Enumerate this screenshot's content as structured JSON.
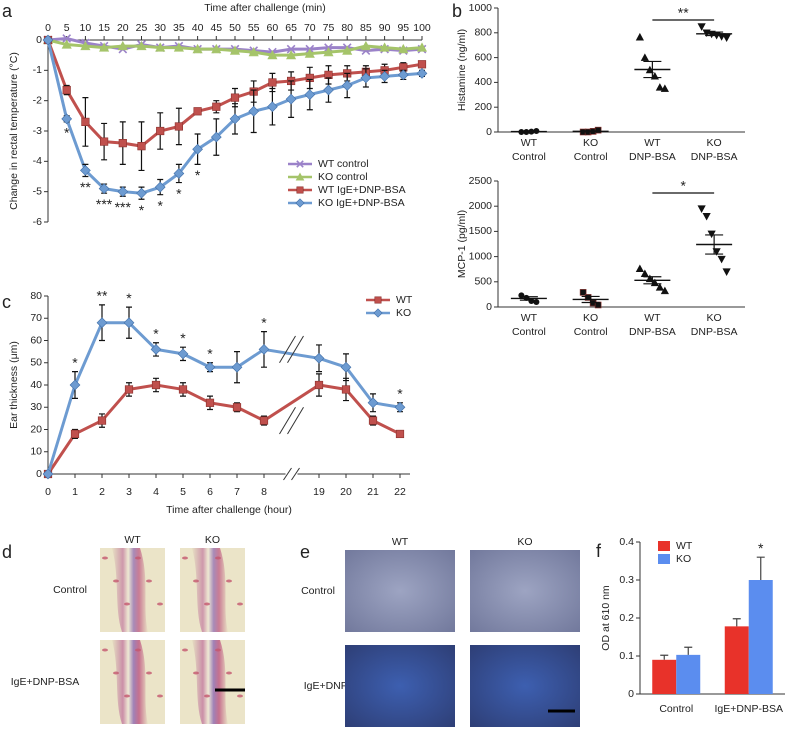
{
  "chart_data": [
    {
      "panel": "a",
      "type": "line",
      "x_label": "Time after challenge (min)",
      "y_label": "Change in rectal temperature (°C)",
      "x": [
        0,
        5,
        10,
        15,
        20,
        25,
        30,
        35,
        40,
        45,
        50,
        55,
        60,
        65,
        70,
        75,
        80,
        85,
        90,
        95,
        100
      ],
      "xlim": [
        0,
        100
      ],
      "xticks": [
        0,
        5,
        10,
        15,
        20,
        25,
        30,
        35,
        40,
        45,
        50,
        55,
        60,
        65,
        70,
        75,
        80,
        85,
        90,
        95,
        100
      ],
      "ylim": [
        -6,
        0
      ],
      "yticks": [
        0,
        -1,
        -2,
        -3,
        -4,
        -5,
        -6
      ],
      "legend": "lower right",
      "series": [
        {
          "name": "WT control",
          "color": "#9b82c9",
          "marker": "x",
          "values": [
            0,
            0.05,
            -0.1,
            -0.2,
            -0.3,
            -0.15,
            -0.25,
            -0.2,
            -0.3,
            -0.3,
            -0.3,
            -0.35,
            -0.4,
            -0.3,
            -0.3,
            -0.25,
            -0.25,
            -0.35,
            -0.3,
            -0.35,
            -0.3
          ]
        },
        {
          "name": "KO control",
          "color": "#a5c46a",
          "marker": "triangle",
          "values": [
            0,
            -0.15,
            -0.2,
            -0.25,
            -0.2,
            -0.2,
            -0.25,
            -0.25,
            -0.3,
            -0.3,
            -0.35,
            -0.4,
            -0.5,
            -0.5,
            -0.45,
            -0.4,
            -0.35,
            -0.2,
            -0.25,
            -0.3,
            -0.25
          ]
        },
        {
          "name": "WT IgE+DNP-BSA",
          "color": "#c0504d",
          "marker": "square",
          "values": [
            0,
            -1.65,
            -2.7,
            -3.35,
            -3.4,
            -3.5,
            -3.0,
            -2.85,
            -2.35,
            -2.2,
            -1.9,
            -1.7,
            -1.4,
            -1.35,
            -1.25,
            -1.15,
            -1.1,
            -1.05,
            -1.0,
            -0.9,
            -0.8
          ],
          "errors": [
            0,
            0.15,
            0.8,
            0.6,
            0.7,
            0.8,
            0.6,
            0.6,
            0.1,
            0.2,
            0.3,
            0.35,
            0.3,
            0.3,
            0.35,
            0.3,
            0.25,
            0.2,
            0.2,
            0.15,
            0.1
          ]
        },
        {
          "name": "KO IgE+DNP-BSA",
          "color": "#6d9bd1",
          "marker": "diamond",
          "values": [
            0,
            -2.6,
            -4.3,
            -4.9,
            -5.0,
            -5.05,
            -4.85,
            -4.4,
            -3.6,
            -3.2,
            -2.6,
            -2.35,
            -2.2,
            -1.95,
            -1.8,
            -1.65,
            -1.5,
            -1.25,
            -1.2,
            -1.15,
            -1.1
          ],
          "errors": [
            0,
            0.1,
            0.2,
            0.15,
            0.15,
            0.2,
            0.25,
            0.3,
            0.5,
            0.6,
            0.5,
            0.7,
            0.6,
            0.6,
            0.5,
            0.4,
            0.4,
            0.3,
            0.2,
            0.15,
            0.1
          ],
          "significance": [
            null,
            "*",
            "**",
            "***",
            "***",
            "*",
            "*",
            "*",
            "*",
            null,
            null,
            null,
            null,
            null,
            null,
            null,
            null,
            null,
            null,
            null,
            null
          ]
        }
      ]
    },
    {
      "panel": "b",
      "type": "strip",
      "y_label": "Histamine (ng/ml)",
      "color": "#111111",
      "categories": [
        [
          "WT",
          "Control"
        ],
        [
          "KO",
          "Control"
        ],
        [
          "WT",
          "DNP-BSA"
        ],
        [
          "KO",
          "DNP-BSA"
        ]
      ],
      "markers": [
        "circle",
        "square",
        "triangle",
        "triangle-down"
      ],
      "values": [
        [
          0,
          0,
          3,
          8
        ],
        [
          0,
          0,
          5,
          15
        ],
        [
          765,
          600,
          500,
          450,
          360,
          350
        ],
        [
          850,
          800,
          790,
          780,
          770,
          760
        ]
      ],
      "means": [
        3,
        5,
        504,
        792
      ],
      "sems": [
        2,
        4,
        65,
        14
      ],
      "ylim": [
        0,
        1000
      ],
      "yticks": [
        0,
        200,
        400,
        600,
        800,
        1000
      ],
      "brackets": [
        {
          "from": 2,
          "to": 3,
          "label": "**"
        }
      ]
    },
    {
      "type": "strip",
      "y_label": "MCP-1 (pg/ml)",
      "color": "#111111",
      "categories": [
        [
          "WT",
          "Control"
        ],
        [
          "KO",
          "Control"
        ],
        [
          "WT",
          "DNP-BSA"
        ],
        [
          "KO",
          "DNP-BSA"
        ]
      ],
      "markers": [
        "circle",
        "square",
        "triangle",
        "triangle-down"
      ],
      "values": [
        [
          230,
          180,
          120,
          100
        ],
        [
          290,
          190,
          80,
          40
        ],
        [
          760,
          660,
          560,
          480,
          390,
          320
        ],
        [
          1950,
          1800,
          1450,
          1100,
          950,
          700
        ]
      ],
      "means": [
        170,
        150,
        530,
        1240
      ],
      "sems": [
        35,
        60,
        70,
        190
      ],
      "ylim": [
        0,
        2500
      ],
      "yticks": [
        0,
        500,
        1000,
        1500,
        2000,
        2500
      ],
      "brackets": [
        {
          "from": 2,
          "to": 3,
          "label": "*"
        }
      ]
    },
    {
      "panel": "c",
      "type": "line",
      "x_label": "Time after challenge (hour)",
      "y_label": "Ear thickness (μm)",
      "categories": [
        0,
        1,
        2,
        3,
        4,
        5,
        6,
        7,
        8,
        19,
        20,
        21,
        22
      ],
      "axis_break": true,
      "ylim": [
        0,
        80
      ],
      "yticks": [
        0,
        10,
        20,
        30,
        40,
        50,
        60,
        70,
        80
      ],
      "legend": "upper right",
      "series": [
        {
          "name": "WT",
          "color": "#c0504d",
          "marker": "square",
          "values": [
            0,
            18,
            24,
            38,
            40,
            38,
            32,
            30,
            24,
            40,
            38,
            24,
            18
          ],
          "errors": [
            0,
            2,
            3,
            3,
            3,
            3,
            3,
            2,
            2,
            5,
            5,
            2,
            1
          ]
        },
        {
          "name": "KO",
          "color": "#6d9bd1",
          "marker": "diamond",
          "values": [
            0,
            40,
            68,
            68,
            56,
            54,
            48,
            48,
            56,
            52,
            48,
            32,
            30
          ],
          "errors": [
            0,
            6,
            8,
            7,
            3,
            3,
            2,
            7,
            8,
            6,
            6,
            4,
            2
          ],
          "significance": [
            null,
            "*",
            "**",
            "*",
            "*",
            "*",
            "*",
            null,
            "*",
            null,
            null,
            null,
            "*"
          ]
        }
      ]
    },
    {
      "panel": "f",
      "type": "bar",
      "y_label": "OD at 610 nm",
      "categories": [
        "Control",
        "IgE+DNP-BSA"
      ],
      "ylim": [
        0,
        0.4
      ],
      "yticks": [
        0,
        0.1,
        0.2,
        0.3,
        0.4
      ],
      "legend": "upper left",
      "series": [
        {
          "name": "WT",
          "color": "#e8322a",
          "values": [
            0.09,
            0.178
          ],
          "errors": [
            0.012,
            0.02
          ]
        },
        {
          "name": "KO",
          "color": "#5b8def",
          "values": [
            0.103,
            0.3
          ],
          "errors": [
            0.02,
            0.06
          ],
          "significance": [
            null,
            "*"
          ]
        }
      ]
    }
  ],
  "images": [
    {
      "panel": "d",
      "columns": [
        "WT",
        "KO"
      ],
      "rows": [
        "Control",
        "IgE+DNP-BSA"
      ]
    },
    {
      "panel": "e",
      "columns": [
        "WT",
        "KO"
      ],
      "rows": [
        "Control",
        "IgE+DNP-BSA"
      ]
    }
  ]
}
